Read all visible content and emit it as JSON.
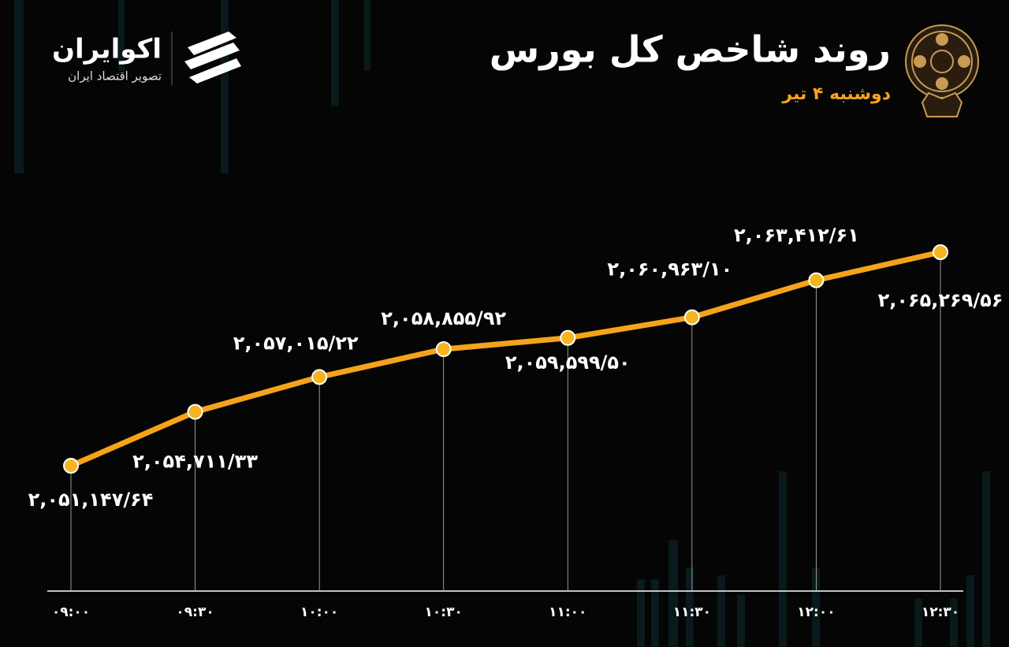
{
  "brand": {
    "name": "اکوایران",
    "tagline": "تصویر اقتصاد ایران"
  },
  "chart_data": {
    "type": "line",
    "title": "روند شاخص کل بورس",
    "subtitle": "دوشنبه ۴ تیر",
    "categories": [
      "۰۹:۰۰",
      "۰۹:۳۰",
      "۱۰:۰۰",
      "۱۰:۳۰",
      "۱۱:۰۰",
      "۱۱:۳۰",
      "۱۲:۰۰",
      "۱۲:۳۰"
    ],
    "values": [
      2051147.64,
      2054711.33,
      2057015.22,
      2058855.92,
      2059599.5,
      2060963.1,
      2063412.61,
      2065269.56
    ],
    "value_labels": [
      "۲,۰۵۱,۱۴۷/۶۴",
      "۲,۰۵۴,۷۱۱/۳۳",
      "۲,۰۵۷,۰۱۵/۲۲",
      "۲,۰۵۸,۸۵۵/۹۲",
      "۲,۰۵۹,۵۹۹/۵۰",
      "۲,۰۶۰,۹۶۳/۱۰",
      "۲,۰۶۳,۴۱۲/۶۱",
      "۲,۰۶۵,۲۶۹/۵۶"
    ],
    "color": "#f5a31a"
  }
}
